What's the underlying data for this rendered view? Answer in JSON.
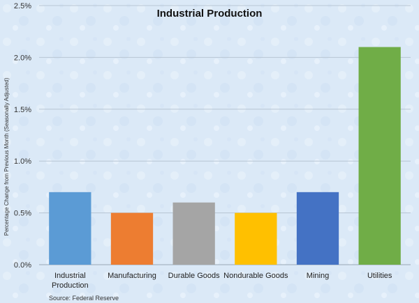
{
  "chart_data": {
    "type": "bar",
    "title": "Industrial Production",
    "ylabel": "Percentage Change from Previous Month (Seasonally Adjusted)",
    "xlabel": "",
    "categories": [
      [
        "Industrial",
        "Production"
      ],
      [
        "Manufacturing"
      ],
      [
        "Durable Goods"
      ],
      [
        "Nondurable Goods"
      ],
      [
        "Mining"
      ],
      [
        "Utilities"
      ]
    ],
    "values": [
      0.7,
      0.5,
      0.6,
      0.5,
      0.7,
      2.1
    ],
    "bar_colors": [
      "#5b9bd5",
      "#ed7d31",
      "#a5a5a5",
      "#ffc000",
      "#4472c4",
      "#70ad47"
    ],
    "ylim": [
      0,
      2.5
    ],
    "yticks": [
      0,
      0.5,
      1.0,
      1.5,
      2.0,
      2.5
    ],
    "ytick_labels": [
      "0.0%",
      "0.5%",
      "1.0%",
      "1.5%",
      "2.0%",
      "2.5%"
    ],
    "grid": true,
    "legend": "none",
    "source": "Source: Federal Reserve"
  },
  "colors": {
    "background": "#dbe9f7",
    "gridline": "#b8c6d4",
    "axis": "#9aa8b5"
  }
}
